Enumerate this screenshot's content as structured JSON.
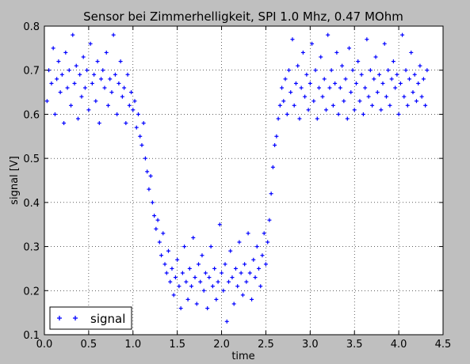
{
  "chart_data": {
    "type": "scatter",
    "title": "Sensor bei Zimmerhelligkeit, SPI 1.0 Mhz, 0.47 MOhm",
    "xlabel": "time",
    "ylabel": "signal [V]",
    "xlim": [
      0.0,
      4.5
    ],
    "ylim": [
      0.1,
      0.8
    ],
    "xticks": [
      0.0,
      0.5,
      1.0,
      1.5,
      2.0,
      2.5,
      3.0,
      3.5,
      4.0,
      4.5
    ],
    "xtick_labels": [
      "0.0",
      "0.5",
      "1.0",
      "1.5",
      "2.0",
      "2.5",
      "3.0",
      "3.5",
      "4.0",
      "4.5"
    ],
    "yticks": [
      0.1,
      0.2,
      0.3,
      0.4,
      0.5,
      0.6,
      0.7,
      0.8
    ],
    "ytick_labels": [
      "0.1",
      "0.2",
      "0.3",
      "0.4",
      "0.5",
      "0.6",
      "0.7",
      "0.8"
    ],
    "grid": true,
    "legend_position": "lower-left",
    "series": [
      {
        "name": "signal",
        "color": "#0000ff",
        "marker": "+",
        "points": [
          [
            0.03,
            0.63
          ],
          [
            0.05,
            0.7
          ],
          [
            0.08,
            0.67
          ],
          [
            0.1,
            0.75
          ],
          [
            0.12,
            0.6
          ],
          [
            0.14,
            0.68
          ],
          [
            0.16,
            0.72
          ],
          [
            0.18,
            0.65
          ],
          [
            0.2,
            0.69
          ],
          [
            0.22,
            0.58
          ],
          [
            0.24,
            0.74
          ],
          [
            0.26,
            0.66
          ],
          [
            0.28,
            0.7
          ],
          [
            0.3,
            0.62
          ],
          [
            0.32,
            0.78
          ],
          [
            0.34,
            0.67
          ],
          [
            0.36,
            0.71
          ],
          [
            0.38,
            0.59
          ],
          [
            0.4,
            0.69
          ],
          [
            0.42,
            0.64
          ],
          [
            0.44,
            0.73
          ],
          [
            0.46,
            0.66
          ],
          [
            0.48,
            0.7
          ],
          [
            0.5,
            0.61
          ],
          [
            0.52,
            0.76
          ],
          [
            0.54,
            0.67
          ],
          [
            0.56,
            0.69
          ],
          [
            0.58,
            0.63
          ],
          [
            0.6,
            0.72
          ],
          [
            0.62,
            0.58
          ],
          [
            0.64,
            0.68
          ],
          [
            0.66,
            0.7
          ],
          [
            0.68,
            0.66
          ],
          [
            0.7,
            0.74
          ],
          [
            0.72,
            0.62
          ],
          [
            0.74,
            0.68
          ],
          [
            0.76,
            0.65
          ],
          [
            0.78,
            0.78
          ],
          [
            0.8,
            0.69
          ],
          [
            0.82,
            0.6
          ],
          [
            0.84,
            0.67
          ],
          [
            0.86,
            0.72
          ],
          [
            0.88,
            0.64
          ],
          [
            0.9,
            0.66
          ],
          [
            0.92,
            0.58
          ],
          [
            0.94,
            0.69
          ],
          [
            0.96,
            0.62
          ],
          [
            0.98,
            0.65
          ],
          [
            1.0,
            0.61
          ],
          [
            1.02,
            0.63
          ],
          [
            1.04,
            0.57
          ],
          [
            1.06,
            0.6
          ],
          [
            1.08,
            0.55
          ],
          [
            1.1,
            0.53
          ],
          [
            1.12,
            0.58
          ],
          [
            1.14,
            0.5
          ],
          [
            1.16,
            0.47
          ],
          [
            1.18,
            0.43
          ],
          [
            1.2,
            0.46
          ],
          [
            1.22,
            0.4
          ],
          [
            1.24,
            0.37
          ],
          [
            1.26,
            0.34
          ],
          [
            1.28,
            0.36
          ],
          [
            1.3,
            0.31
          ],
          [
            1.32,
            0.28
          ],
          [
            1.34,
            0.33
          ],
          [
            1.36,
            0.26
          ],
          [
            1.38,
            0.24
          ],
          [
            1.4,
            0.29
          ],
          [
            1.42,
            0.22
          ],
          [
            1.44,
            0.25
          ],
          [
            1.46,
            0.19
          ],
          [
            1.48,
            0.23
          ],
          [
            1.5,
            0.27
          ],
          [
            1.52,
            0.21
          ],
          [
            1.54,
            0.16
          ],
          [
            1.56,
            0.24
          ],
          [
            1.58,
            0.3
          ],
          [
            1.6,
            0.22
          ],
          [
            1.62,
            0.18
          ],
          [
            1.64,
            0.25
          ],
          [
            1.66,
            0.21
          ],
          [
            1.68,
            0.32
          ],
          [
            1.7,
            0.23
          ],
          [
            1.72,
            0.17
          ],
          [
            1.74,
            0.26
          ],
          [
            1.76,
            0.22
          ],
          [
            1.78,
            0.28
          ],
          [
            1.8,
            0.2
          ],
          [
            1.82,
            0.24
          ],
          [
            1.84,
            0.16
          ],
          [
            1.86,
            0.23
          ],
          [
            1.88,
            0.3
          ],
          [
            1.9,
            0.21
          ],
          [
            1.92,
            0.25
          ],
          [
            1.94,
            0.18
          ],
          [
            1.96,
            0.22
          ],
          [
            1.98,
            0.35
          ],
          [
            2.0,
            0.24
          ],
          [
            2.02,
            0.2
          ],
          [
            2.04,
            0.26
          ],
          [
            2.06,
            0.13
          ],
          [
            2.08,
            0.22
          ],
          [
            2.1,
            0.29
          ],
          [
            2.12,
            0.23
          ],
          [
            2.14,
            0.17
          ],
          [
            2.16,
            0.25
          ],
          [
            2.18,
            0.21
          ],
          [
            2.2,
            0.31
          ],
          [
            2.22,
            0.24
          ],
          [
            2.24,
            0.19
          ],
          [
            2.26,
            0.26
          ],
          [
            2.28,
            0.22
          ],
          [
            2.3,
            0.33
          ],
          [
            2.32,
            0.24
          ],
          [
            2.34,
            0.18
          ],
          [
            2.36,
            0.27
          ],
          [
            2.38,
            0.23
          ],
          [
            2.4,
            0.3
          ],
          [
            2.42,
            0.25
          ],
          [
            2.44,
            0.21
          ],
          [
            2.46,
            0.28
          ],
          [
            2.48,
            0.33
          ],
          [
            2.5,
            0.26
          ],
          [
            2.52,
            0.31
          ],
          [
            2.54,
            0.36
          ],
          [
            2.56,
            0.42
          ],
          [
            2.58,
            0.48
          ],
          [
            2.6,
            0.53
          ],
          [
            2.62,
            0.55
          ],
          [
            2.64,
            0.59
          ],
          [
            2.66,
            0.62
          ],
          [
            2.68,
            0.66
          ],
          [
            2.7,
            0.63
          ],
          [
            2.72,
            0.68
          ],
          [
            2.74,
            0.6
          ],
          [
            2.76,
            0.7
          ],
          [
            2.78,
            0.65
          ],
          [
            2.8,
            0.77
          ],
          [
            2.82,
            0.62
          ],
          [
            2.84,
            0.67
          ],
          [
            2.86,
            0.71
          ],
          [
            2.88,
            0.59
          ],
          [
            2.9,
            0.66
          ],
          [
            2.92,
            0.74
          ],
          [
            2.94,
            0.64
          ],
          [
            2.96,
            0.69
          ],
          [
            2.98,
            0.61
          ],
          [
            3.0,
            0.67
          ],
          [
            3.02,
            0.76
          ],
          [
            3.04,
            0.63
          ],
          [
            3.06,
            0.7
          ],
          [
            3.08,
            0.59
          ],
          [
            3.1,
            0.66
          ],
          [
            3.12,
            0.73
          ],
          [
            3.14,
            0.64
          ],
          [
            3.16,
            0.68
          ],
          [
            3.18,
            0.61
          ],
          [
            3.2,
            0.78
          ],
          [
            3.22,
            0.66
          ],
          [
            3.24,
            0.7
          ],
          [
            3.26,
            0.62
          ],
          [
            3.28,
            0.67
          ],
          [
            3.3,
            0.74
          ],
          [
            3.32,
            0.6
          ],
          [
            3.34,
            0.66
          ],
          [
            3.36,
            0.71
          ],
          [
            3.38,
            0.63
          ],
          [
            3.4,
            0.68
          ],
          [
            3.42,
            0.59
          ],
          [
            3.44,
            0.75
          ],
          [
            3.46,
            0.65
          ],
          [
            3.48,
            0.7
          ],
          [
            3.5,
            0.61
          ],
          [
            3.52,
            0.67
          ],
          [
            3.54,
            0.72
          ],
          [
            3.56,
            0.63
          ],
          [
            3.58,
            0.69
          ],
          [
            3.6,
            0.6
          ],
          [
            3.62,
            0.66
          ],
          [
            3.64,
            0.77
          ],
          [
            3.66,
            0.64
          ],
          [
            3.68,
            0.7
          ],
          [
            3.7,
            0.62
          ],
          [
            3.72,
            0.68
          ],
          [
            3.74,
            0.73
          ],
          [
            3.76,
            0.65
          ],
          [
            3.78,
            0.69
          ],
          [
            3.8,
            0.61
          ],
          [
            3.82,
            0.67
          ],
          [
            3.84,
            0.76
          ],
          [
            3.86,
            0.64
          ],
          [
            3.88,
            0.7
          ],
          [
            3.9,
            0.62
          ],
          [
            3.92,
            0.68
          ],
          [
            3.94,
            0.72
          ],
          [
            3.96,
            0.66
          ],
          [
            3.98,
            0.69
          ],
          [
            4.0,
            0.6
          ],
          [
            4.02,
            0.67
          ],
          [
            4.04,
            0.78
          ],
          [
            4.06,
            0.64
          ],
          [
            4.08,
            0.7
          ],
          [
            4.1,
            0.62
          ],
          [
            4.12,
            0.68
          ],
          [
            4.14,
            0.74
          ],
          [
            4.16,
            0.65
          ],
          [
            4.18,
            0.69
          ],
          [
            4.2,
            0.63
          ],
          [
            4.22,
            0.67
          ],
          [
            4.24,
            0.71
          ],
          [
            4.26,
            0.64
          ],
          [
            4.28,
            0.68
          ],
          [
            4.3,
            0.62
          ],
          [
            4.32,
            0.7
          ]
        ]
      }
    ]
  }
}
